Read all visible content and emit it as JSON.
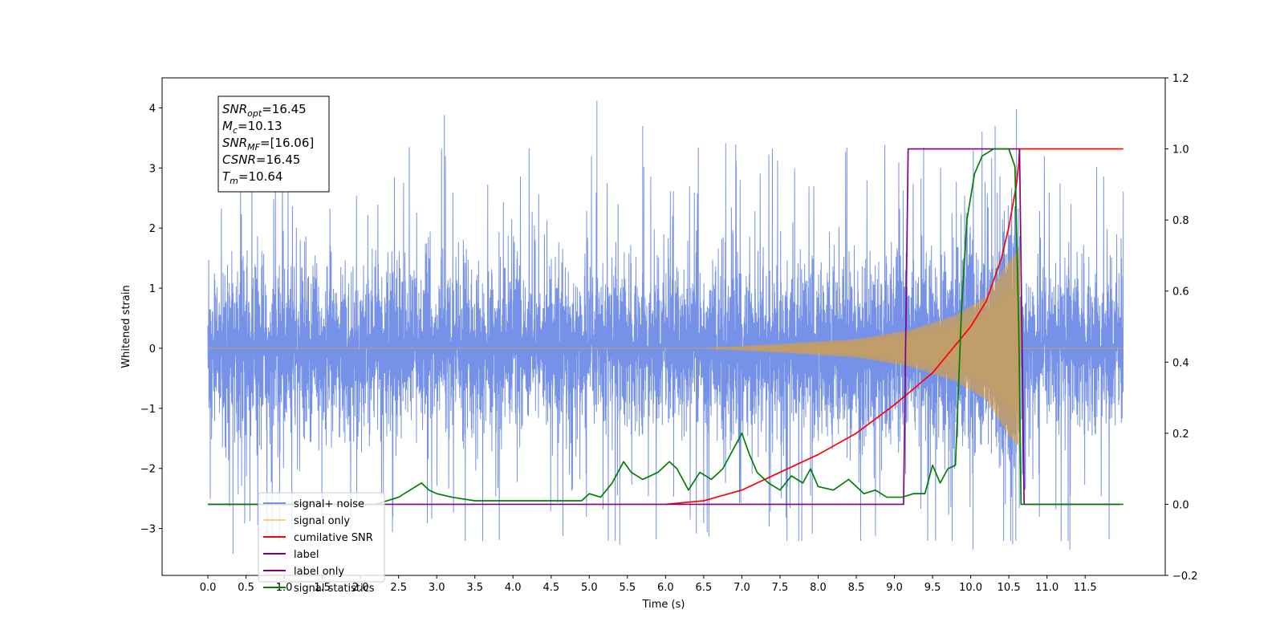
{
  "chart_data": {
    "type": "line",
    "xlabel": "Time (s)",
    "ylabel": "Whitened strain",
    "xlim": [
      -0.6,
      12.55
    ],
    "ylim": [
      -3.78,
      4.5
    ],
    "y2lim": [
      -0.2,
      1.2
    ],
    "x_ticks": [
      "0.0",
      "0.5",
      "1.0",
      "1.5",
      "2.0",
      "2.5",
      "3.0",
      "3.5",
      "4.0",
      "4.5",
      "5.0",
      "5.5",
      "6.0",
      "6.5",
      "7.0",
      "7.5",
      "8.0",
      "8.5",
      "9.0",
      "9.5",
      "10.0",
      "10.5",
      "11.0",
      "11.5"
    ],
    "y_ticks": [
      "−3",
      "−2",
      "−1",
      "0",
      "1",
      "2",
      "3",
      "4"
    ],
    "y2_ticks": [
      "−0.2",
      "0.0",
      "0.2",
      "0.4",
      "0.6",
      "0.8",
      "1.0",
      "1.2"
    ],
    "grid": false,
    "legend_position": "lower-left",
    "annotation": {
      "lines": [
        {
          "base": "SNR",
          "sub": "opt",
          "value": "=16.45"
        },
        {
          "base": "M",
          "sub": "c",
          "value": "=10.13"
        },
        {
          "base": "SNR",
          "sub": "MF",
          "value": "=[16.06]"
        },
        {
          "base": "CSNR",
          "sub": "",
          "value": "=16.45"
        },
        {
          "base": "T",
          "sub": "m",
          "value": "=10.64"
        }
      ]
    },
    "series": [
      {
        "name": "signal+ noise",
        "axis": "left",
        "color": "#7692e8",
        "x_range": [
          0.0,
          12.0
        ],
        "envelope": {
          "typical_abs": 1.3,
          "peak_abs": 4.1
        },
        "extremes": [
          {
            "x": 5.1,
            "y": 4.12
          },
          {
            "x": 10.6,
            "y": 3.98
          },
          {
            "x": 3.1,
            "y": 3.88
          },
          {
            "x": 5.7,
            "y": 3.7
          },
          {
            "x": 10.32,
            "y": 3.7
          },
          {
            "x": 0.33,
            "y": -3.42
          },
          {
            "x": 5.4,
            "y": -3.27
          },
          {
            "x": 10.03,
            "y": -3.35
          },
          {
            "x": 11.3,
            "y": -3.35
          },
          {
            "x": 10.55,
            "y": -3.27
          }
        ]
      },
      {
        "name": "signal only",
        "axis": "left",
        "color": "#ffa500",
        "x_range": [
          0.0,
          12.0
        ],
        "chirp": [
          {
            "x": 6.5,
            "amp": 0.0
          },
          {
            "x": 7.5,
            "amp": 0.07
          },
          {
            "x": 8.5,
            "amp": 0.15
          },
          {
            "x": 9.2,
            "amp": 0.3
          },
          {
            "x": 9.8,
            "amp": 0.55
          },
          {
            "x": 10.2,
            "amp": 0.85
          },
          {
            "x": 10.5,
            "amp": 1.45
          },
          {
            "x": 10.64,
            "amp": 1.65
          },
          {
            "x": 10.66,
            "amp": 0.0
          }
        ]
      },
      {
        "name": "cumilative SNR",
        "axis": "right",
        "color": "#ff0000",
        "x": [
          6.0,
          6.5,
          7.0,
          7.5,
          8.0,
          8.5,
          9.0,
          9.5,
          10.0,
          10.2,
          10.4,
          10.5,
          10.55,
          10.6,
          10.63,
          10.64,
          12.0
        ],
        "y": [
          0.0,
          0.01,
          0.04,
          0.09,
          0.14,
          0.2,
          0.28,
          0.37,
          0.5,
          0.57,
          0.69,
          0.78,
          0.84,
          0.9,
          0.96,
          1.0,
          1.0
        ]
      },
      {
        "name": "label",
        "axis": "right",
        "color": "#800080",
        "x": [
          0.0,
          9.12,
          9.18,
          10.64,
          10.7,
          11.95
        ],
        "y": [
          0.0,
          0.0,
          1.0,
          1.0,
          0.0,
          0.0
        ]
      },
      {
        "name": "label only",
        "axis": "right",
        "color": "#800080",
        "x": [],
        "y": []
      },
      {
        "name": "signal statistics",
        "axis": "right",
        "color": "#008000",
        "x": [
          0.0,
          2.2,
          2.5,
          2.65,
          2.8,
          2.9,
          3.0,
          3.2,
          3.5,
          4.0,
          4.5,
          4.9,
          5.0,
          5.15,
          5.3,
          5.45,
          5.55,
          5.7,
          5.9,
          6.05,
          6.15,
          6.3,
          6.45,
          6.6,
          6.75,
          6.9,
          7.0,
          7.1,
          7.2,
          7.35,
          7.5,
          7.65,
          7.8,
          7.9,
          8.0,
          8.2,
          8.4,
          8.6,
          8.75,
          8.9,
          9.1,
          9.25,
          9.4,
          9.5,
          9.6,
          9.7,
          9.8,
          9.88,
          9.95,
          10.05,
          10.15,
          10.3,
          10.5,
          10.58,
          10.63,
          10.66,
          12.0
        ],
        "y": [
          0.0,
          0.0,
          0.02,
          0.04,
          0.06,
          0.04,
          0.03,
          0.02,
          0.01,
          0.01,
          0.01,
          0.01,
          0.03,
          0.02,
          0.06,
          0.12,
          0.09,
          0.07,
          0.09,
          0.12,
          0.1,
          0.04,
          0.09,
          0.07,
          0.1,
          0.16,
          0.2,
          0.14,
          0.09,
          0.06,
          0.04,
          0.08,
          0.06,
          0.1,
          0.05,
          0.04,
          0.07,
          0.03,
          0.04,
          0.02,
          0.02,
          0.03,
          0.03,
          0.11,
          0.06,
          0.1,
          0.11,
          0.55,
          0.8,
          0.93,
          0.98,
          1.0,
          1.0,
          0.95,
          0.5,
          0.0,
          0.0
        ]
      }
    ]
  }
}
